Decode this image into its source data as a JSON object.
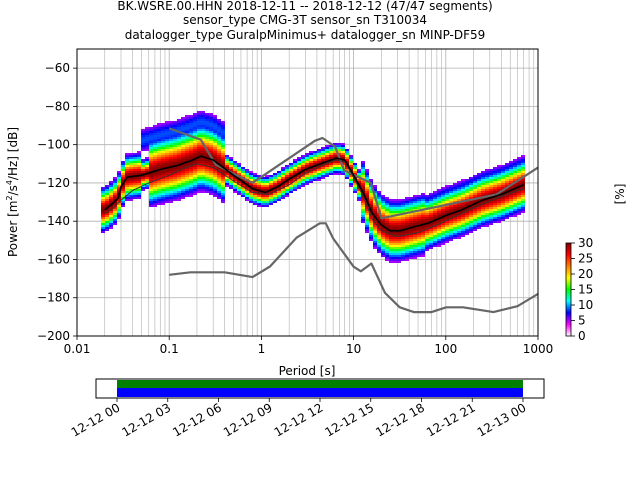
{
  "title_lines": [
    "BK.WSRE.00.HHN   2018-12-11 -- 2018-12-12  (47/47 segments)",
    "sensor_type CMG-3T sensor_sn T310034",
    "datalogger_type GuralpMinimus+ datalogger_sn MINP-DF59"
  ],
  "chart_data": {
    "type": "heatmap",
    "xlabel": "Period [s]",
    "ylabel_parts": [
      "Power [m",
      "2",
      "/s",
      "4",
      "/Hz] [dB]"
    ],
    "xscale": "log",
    "xlim": [
      0.01,
      1000
    ],
    "ylim": [
      -200,
      -50
    ],
    "xticks": [
      {
        "value": 0.01,
        "label": "0.01"
      },
      {
        "value": 0.1,
        "label": "0.1"
      },
      {
        "value": 1,
        "label": "1"
      },
      {
        "value": 10,
        "label": "10"
      },
      {
        "value": 100,
        "label": "100"
      },
      {
        "value": 1000,
        "label": "1000"
      }
    ],
    "yticks": [
      {
        "value": -60,
        "label": "−60"
      },
      {
        "value": -80,
        "label": "−80"
      },
      {
        "value": -100,
        "label": "−100"
      },
      {
        "value": -120,
        "label": "−120"
      },
      {
        "value": -140,
        "label": "−140"
      },
      {
        "value": -160,
        "label": "−160"
      },
      {
        "value": -180,
        "label": "−180"
      },
      {
        "value": -200,
        "label": "−200"
      }
    ],
    "grid": true,
    "colorbar": {
      "label": "[%]",
      "range": [
        0,
        30
      ],
      "ticks": [
        {
          "value": 0,
          "label": "0"
        },
        {
          "value": 5,
          "label": "5"
        },
        {
          "value": 10,
          "label": "10"
        },
        {
          "value": 15,
          "label": "15"
        },
        {
          "value": 20,
          "label": "20"
        },
        {
          "value": 25,
          "label": "25"
        },
        {
          "value": 30,
          "label": "30"
        }
      ],
      "colors": [
        "#ffffff",
        "#ff00ff",
        "#0000ff",
        "#00ffff",
        "#00ff00",
        "#ffff00",
        "#ff8000",
        "#ff0000",
        "#800000"
      ]
    },
    "series": [
      {
        "role": "new-high-noise-model",
        "color": "#666666",
        "x": [
          0.1,
          0.22,
          0.32,
          0.8,
          3.8,
          4.6,
          6.3,
          7.9,
          15.4,
          20,
          354.8,
          1000
        ],
        "y": [
          -91.5,
          -97.4,
          -110.5,
          -120,
          -98,
          -96.5,
          -101,
          -113.5,
          -120,
          -138.5,
          -126,
          -112
        ]
      },
      {
        "role": "new-low-noise-model",
        "color": "#666666",
        "x": [
          0.1,
          0.17,
          0.4,
          0.8,
          1.24,
          2.4,
          4.3,
          5,
          6,
          10,
          12,
          15.6,
          21.9,
          31.6,
          45,
          70,
          101,
          154,
          328,
          600,
          1000
        ],
        "y": [
          -168,
          -166.7,
          -166.7,
          -169.2,
          -163.7,
          -148.6,
          -141.1,
          -141.1,
          -149,
          -163.8,
          -166.2,
          -162.1,
          -177.5,
          -185,
          -187.5,
          -187.5,
          -185,
          -185,
          -187.5,
          -184.4,
          -178
        ]
      },
      {
        "role": "mean",
        "color": "#000000",
        "x": [
          0.02,
          0.024,
          0.028,
          0.03,
          0.035,
          0.05,
          0.08,
          0.12,
          0.18,
          0.22,
          0.3,
          0.5,
          0.8,
          1.1,
          1.5,
          2,
          3,
          5,
          6.5,
          8,
          10,
          13,
          16,
          20,
          25,
          32,
          45,
          65,
          100,
          150,
          250,
          400,
          700
        ],
        "y": [
          -134,
          -131,
          -128,
          -122,
          -117,
          -116,
          -113,
          -111,
          -108,
          -106,
          -108,
          -116,
          -123,
          -125,
          -122,
          -118,
          -113,
          -109,
          -107,
          -108,
          -116,
          -126,
          -136,
          -142,
          -145,
          -145,
          -143,
          -141,
          -137,
          -134,
          -129,
          -126,
          -121
        ]
      },
      {
        "role": "mode",
        "color": "#333333",
        "x": [
          0.02,
          0.025,
          0.03,
          0.04,
          0.06,
          0.1,
          0.15,
          0.2,
          0.3,
          0.5,
          0.8,
          1.2,
          2,
          3,
          5,
          6.5,
          8,
          10,
          13,
          16,
          20,
          30,
          50,
          80,
          120,
          200,
          400,
          700
        ],
        "y": [
          -136,
          -133,
          -129,
          -124,
          -120,
          -116,
          -112,
          -110,
          -112,
          -119,
          -125,
          -126,
          -121,
          -115,
          -110,
          -108,
          -109,
          -117,
          -128,
          -139,
          -145,
          -148,
          -146,
          -142,
          -138,
          -133,
          -127,
          -123
        ]
      }
    ],
    "timeline": {
      "tick_labels": [
        "12-12 00",
        "12-12 03",
        "12-12 06",
        "12-12 09",
        "12-12 12",
        "12-12 15",
        "12-12 18",
        "12-12 21",
        "12-13 00"
      ],
      "bars": [
        {
          "role": "data-available",
          "color": "#008000"
        },
        {
          "role": "psd-used",
          "color": "#0000ff"
        }
      ]
    }
  }
}
